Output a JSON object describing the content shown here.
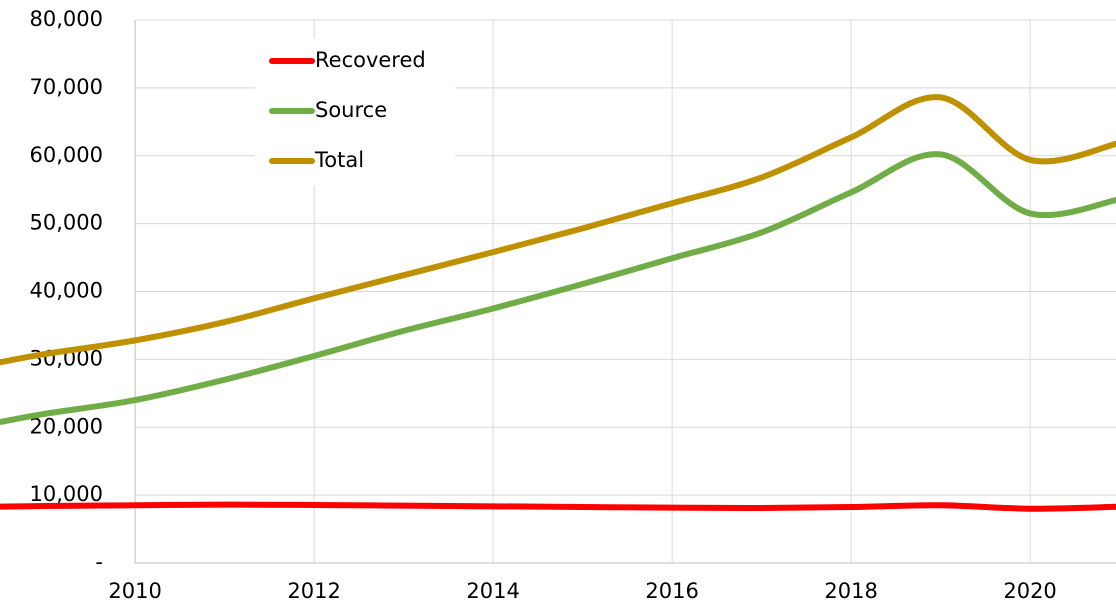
{
  "chart_data": {
    "type": "line",
    "x": [
      2008.5,
      2009,
      2010,
      2011,
      2012,
      2013,
      2014,
      2015,
      2016,
      2017,
      2018,
      2019,
      2020,
      2021
    ],
    "series": [
      {
        "name": "Recovered",
        "color": "#ff0000",
        "values": [
          8300,
          8400,
          8500,
          8600,
          8550,
          8450,
          8350,
          8250,
          8150,
          8100,
          8250,
          8500,
          8000,
          8300
        ]
      },
      {
        "name": "Source",
        "color": "#70ad47",
        "values": [
          20800,
          22000,
          24000,
          27000,
          30500,
          34200,
          37500,
          41100,
          44900,
          48700,
          54600,
          60200,
          51500,
          53600
        ]
      },
      {
        "name": "Total",
        "color": "#bf9000",
        "values": [
          29600,
          30800,
          32800,
          35500,
          39000,
          42400,
          45800,
          49300,
          53000,
          56800,
          62700,
          68600,
          59400,
          61900
        ]
      }
    ],
    "xlim": [
      2008.49,
      2020.96
    ],
    "xticks": [
      2010,
      2012,
      2014,
      2016,
      2018,
      2020
    ],
    "ylim": [
      0,
      80000
    ],
    "yticks": [
      {
        "value": 0,
        "label": "-"
      },
      {
        "value": 10000,
        "label": "10,000"
      },
      {
        "value": 20000,
        "label": "20,000"
      },
      {
        "value": 30000,
        "label": "30,000"
      },
      {
        "value": 40000,
        "label": "40,000"
      },
      {
        "value": 50000,
        "label": "50,000"
      },
      {
        "value": 60000,
        "label": "60,000"
      },
      {
        "value": 70000,
        "label": "70,000"
      },
      {
        "value": 80000,
        "label": "80,000"
      }
    ],
    "grid": true,
    "legend": "upper left"
  }
}
